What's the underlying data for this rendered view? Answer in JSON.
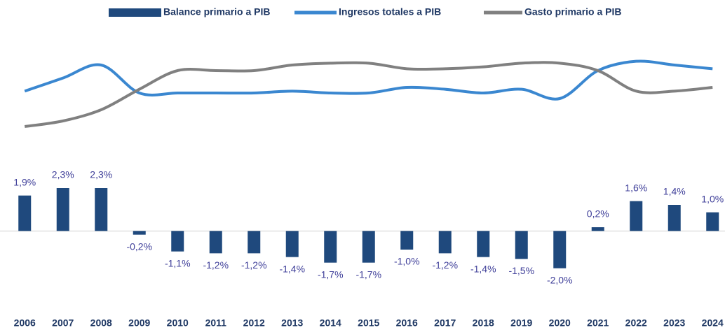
{
  "chart_data": {
    "type": "bar",
    "categories": [
      "2006",
      "2007",
      "2008",
      "2009",
      "2010",
      "2011",
      "2012",
      "2013",
      "2014",
      "2015",
      "2016",
      "2017",
      "2018",
      "2019",
      "2020",
      "2021",
      "2022",
      "2023",
      "2024"
    ],
    "ylim": [
      -4,
      11
    ],
    "y2lim": [
      20,
      35
    ],
    "series": [
      {
        "name": "Balance primario a PIB",
        "type": "bar",
        "color": "#1f497d",
        "values": [
          1.9,
          2.3,
          2.3,
          -0.2,
          -1.1,
          -1.2,
          -1.2,
          -1.4,
          -1.7,
          -1.7,
          -1.0,
          -1.2,
          -1.4,
          -1.5,
          -2.0,
          0.2,
          1.6,
          1.4,
          1.0
        ],
        "value_labels": [
          "1,9%",
          "2,3%",
          "2,3%",
          "-0,2%",
          "-1,1%",
          "-1,2%",
          "-1,2%",
          "-1,4%",
          "-1,7%",
          "-1,7%",
          "-1,0%",
          "-1,2%",
          "-1,4%",
          "-1,5%",
          "-2,0%",
          "0,2%",
          "1,6%",
          "1,4%",
          "1,0%"
        ]
      },
      {
        "name": "Ingresos totales a PIB",
        "type": "line",
        "axis": "y2",
        "color": "#3a87d0",
        "values": [
          31.5,
          32.2,
          32.9,
          31.4,
          31.4,
          31.4,
          31.4,
          31.5,
          31.4,
          31.4,
          31.7,
          31.6,
          31.4,
          31.6,
          31.1,
          32.6,
          33.1,
          32.9,
          32.7
        ]
      },
      {
        "name": "Gasto primario a PIB",
        "type": "line",
        "axis": "y2",
        "color": "#808080",
        "values": [
          29.6,
          29.9,
          30.5,
          31.6,
          32.6,
          32.6,
          32.6,
          32.9,
          33.0,
          33.0,
          32.7,
          32.7,
          32.8,
          33.0,
          33.0,
          32.6,
          31.5,
          31.5,
          31.7
        ]
      }
    ]
  }
}
